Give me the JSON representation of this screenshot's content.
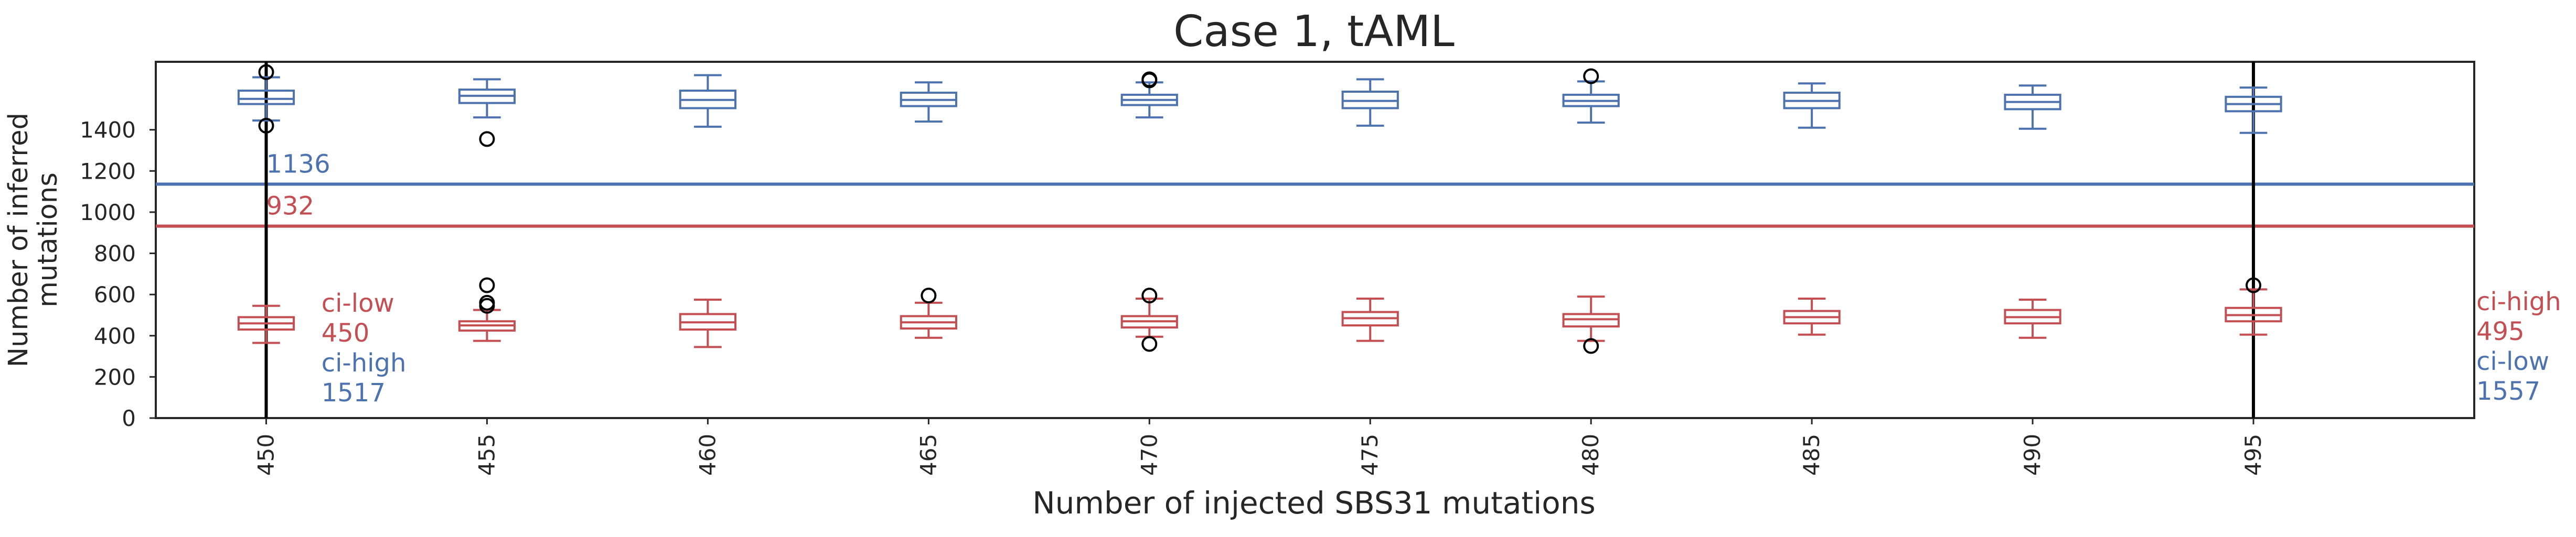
{
  "chart_data": {
    "type": "box",
    "title": "Case 1, tAML",
    "xlabel": "Number of injected SBS31 mutations",
    "ylabel": "Number of inferred\nmutations",
    "ylim": [
      0,
      1730
    ],
    "yticks": [
      0,
      200,
      400,
      600,
      800,
      1000,
      1200,
      1400
    ],
    "categories": [
      "450",
      "455",
      "460",
      "465",
      "470",
      "475",
      "480",
      "485",
      "490",
      "495"
    ],
    "colors": {
      "blue": "#4c72b0",
      "red": "#c44e52",
      "vline": "#000000"
    },
    "series": [
      {
        "color_key": "blue",
        "boxes": [
          {
            "whislo": 1445,
            "q1": 1525,
            "med": 1550,
            "q3": 1590,
            "whishi": 1655,
            "fliers": [
              1680,
              1420
            ]
          },
          {
            "whislo": 1460,
            "q1": 1530,
            "med": 1565,
            "q3": 1595,
            "whishi": 1645,
            "fliers": [
              1355
            ]
          },
          {
            "whislo": 1415,
            "q1": 1505,
            "med": 1545,
            "q3": 1590,
            "whishi": 1665,
            "fliers": []
          },
          {
            "whislo": 1440,
            "q1": 1515,
            "med": 1545,
            "q3": 1580,
            "whishi": 1630,
            "fliers": []
          },
          {
            "whislo": 1460,
            "q1": 1520,
            "med": 1545,
            "q3": 1570,
            "whishi": 1630,
            "fliers": [
              1640,
              1645
            ]
          },
          {
            "whislo": 1420,
            "q1": 1505,
            "med": 1540,
            "q3": 1585,
            "whishi": 1645,
            "fliers": []
          },
          {
            "whislo": 1435,
            "q1": 1515,
            "med": 1540,
            "q3": 1570,
            "whishi": 1635,
            "fliers": [
              1660
            ]
          },
          {
            "whislo": 1410,
            "q1": 1505,
            "med": 1540,
            "q3": 1580,
            "whishi": 1625,
            "fliers": []
          },
          {
            "whislo": 1405,
            "q1": 1500,
            "med": 1535,
            "q3": 1570,
            "whishi": 1615,
            "fliers": []
          },
          {
            "whislo": 1385,
            "q1": 1490,
            "med": 1525,
            "q3": 1560,
            "whishi": 1605,
            "fliers": []
          }
        ]
      },
      {
        "color_key": "red",
        "boxes": [
          {
            "whislo": 365,
            "q1": 430,
            "med": 460,
            "q3": 490,
            "whishi": 545,
            "fliers": []
          },
          {
            "whislo": 375,
            "q1": 425,
            "med": 450,
            "q3": 470,
            "whishi": 525,
            "fliers": [
              645,
              560,
              545
            ]
          },
          {
            "whislo": 345,
            "q1": 430,
            "med": 465,
            "q3": 505,
            "whishi": 575,
            "fliers": []
          },
          {
            "whislo": 390,
            "q1": 435,
            "med": 465,
            "q3": 495,
            "whishi": 560,
            "fliers": [
              595
            ]
          },
          {
            "whislo": 395,
            "q1": 440,
            "med": 470,
            "q3": 495,
            "whishi": 580,
            "fliers": [
              595,
              360
            ]
          },
          {
            "whislo": 375,
            "q1": 450,
            "med": 485,
            "q3": 515,
            "whishi": 580,
            "fliers": []
          },
          {
            "whislo": 375,
            "q1": 445,
            "med": 480,
            "q3": 505,
            "whishi": 590,
            "fliers": [
              350
            ]
          },
          {
            "whislo": 405,
            "q1": 460,
            "med": 490,
            "q3": 520,
            "whishi": 580,
            "fliers": []
          },
          {
            "whislo": 390,
            "q1": 460,
            "med": 490,
            "q3": 525,
            "whishi": 575,
            "fliers": []
          },
          {
            "whislo": 405,
            "q1": 470,
            "med": 500,
            "q3": 535,
            "whishi": 625,
            "fliers": [
              645
            ]
          }
        ]
      }
    ],
    "hlines": [
      {
        "y": 1136,
        "label": "1136",
        "color_key": "blue"
      },
      {
        "y": 932,
        "label": "932",
        "color_key": "red"
      }
    ],
    "vlines": [
      "450",
      "495"
    ],
    "annotations": [
      {
        "category": "450",
        "lines": [
          {
            "text": "ci-low",
            "color_key": "red"
          },
          {
            "text": "450",
            "color_key": "red"
          },
          {
            "text": "ci-high",
            "color_key": "blue"
          },
          {
            "text": "1517",
            "color_key": "blue"
          }
        ]
      },
      {
        "category": "495",
        "lines": [
          {
            "text": "ci-high",
            "color_key": "red"
          },
          {
            "text": "495",
            "color_key": "red"
          },
          {
            "text": "ci-low",
            "color_key": "blue"
          },
          {
            "text": "1557",
            "color_key": "blue"
          }
        ]
      }
    ],
    "grid": false
  }
}
